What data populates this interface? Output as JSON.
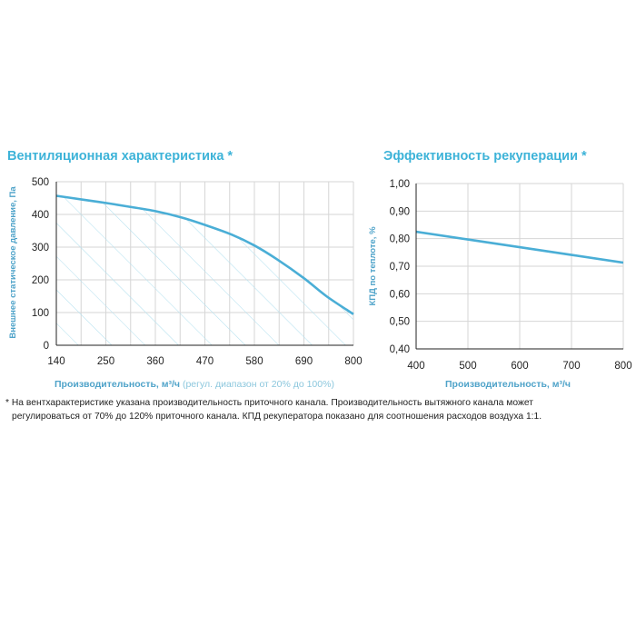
{
  "charts": {
    "left": {
      "title": "Вентиляционная характеристика *",
      "ylabel": "Внешнее статическое давление, Па",
      "xlabel": "Производительность, м³/ч",
      "xlabel_note": "(регул. диапазон от 20% до 100%)"
    },
    "right": {
      "title": "Эффективность рекуперации *",
      "ylabel": "КПД по теплоте, %",
      "xlabel": "Производительность, м³/ч"
    }
  },
  "chart_data": [
    {
      "type": "area",
      "title": "Вентиляционная характеристика *",
      "xlabel": "Производительность, м³/ч (регул. диапазон от 20% до 100%)",
      "ylabel": "Внешнее статическое давление, Па",
      "xlim": [
        140,
        800
      ],
      "ylim": [
        0,
        500
      ],
      "x_ticks": [
        "140",
        "250",
        "360",
        "470",
        "580",
        "690",
        "800"
      ],
      "y_ticks": [
        "0",
        "100",
        "200",
        "300",
        "400",
        "500"
      ],
      "grid": true,
      "color": "#4aaed6",
      "fill": "hatched",
      "series": [
        {
          "x": [
            140,
            200,
            250,
            300,
            360,
            420,
            470,
            530,
            580,
            630,
            690,
            740,
            800
          ],
          "y": [
            457,
            445,
            435,
            424,
            410,
            390,
            368,
            338,
            305,
            263,
            205,
            150,
            95
          ]
        }
      ]
    },
    {
      "type": "line",
      "title": "Эффективность рекуперации *",
      "xlabel": "Производительность, м³/ч",
      "ylabel": "КПД по теплоте, %",
      "xlim": [
        400,
        800
      ],
      "ylim": [
        0.4,
        1.0
      ],
      "x_ticks": [
        "400",
        "500",
        "600",
        "700",
        "800"
      ],
      "y_ticks": [
        "0,40",
        "0,50",
        "0,60",
        "0,70",
        "0,80",
        "0,90",
        "1,00"
      ],
      "grid": true,
      "color": "#4aaed6",
      "series": [
        {
          "x": [
            400,
            500,
            600,
            700,
            800
          ],
          "y": [
            0.825,
            0.797,
            0.769,
            0.741,
            0.713
          ]
        }
      ]
    }
  ],
  "footnote": {
    "line1": "* На вентхарактеристике указана производительность приточного канала. Производительность вытяжного канала может",
    "line2": "регулироваться от 70% до 120% приточного канала. КПД рекуператора показано для соотношения расходов воздуха 1:1."
  }
}
